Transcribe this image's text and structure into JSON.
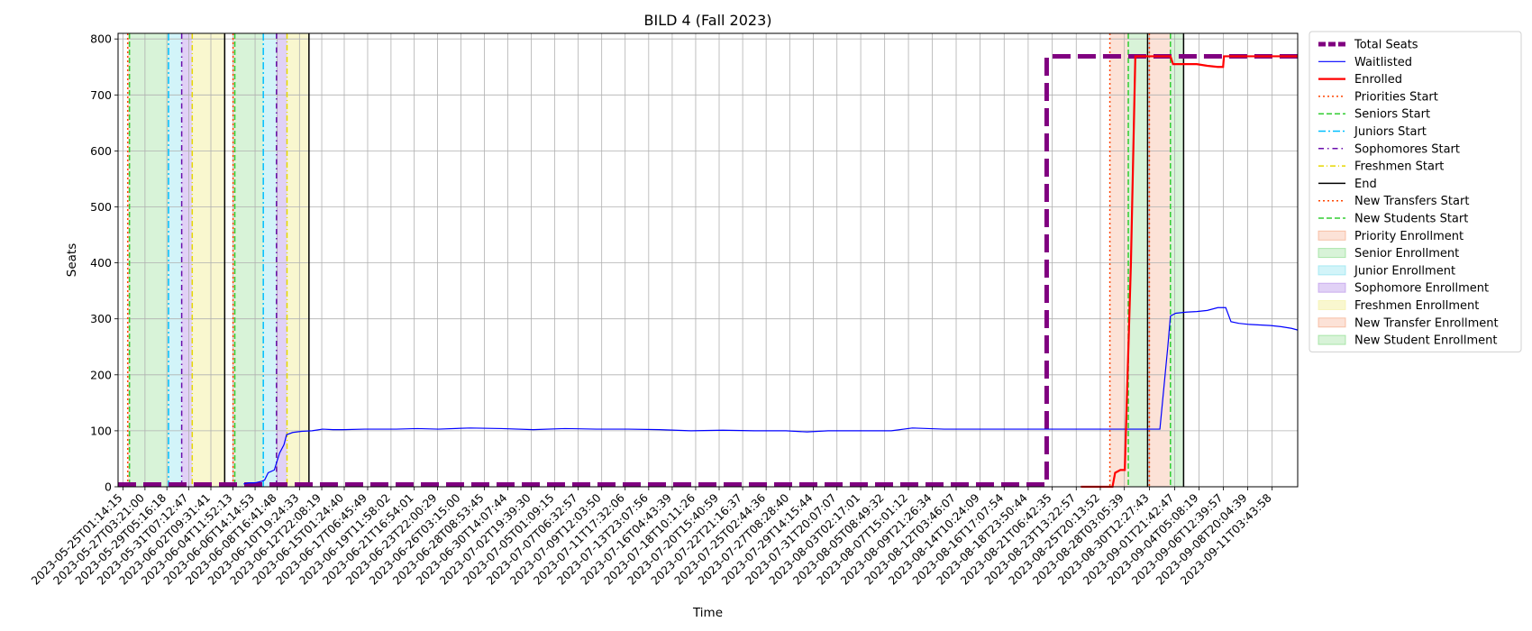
{
  "chart_data": {
    "type": "line",
    "title": "BILD 4 (Fall 2023)",
    "xlabel": "Time",
    "ylabel": "Seats",
    "ylim": [
      0,
      810
    ],
    "yticks": [
      0,
      100,
      200,
      300,
      400,
      500,
      600,
      700,
      800
    ],
    "xlim": [
      "2023-05-24T14:00:00",
      "2023-09-13T14:00:00"
    ],
    "xtick_labels": [
      "2023-05-25T01:14:15",
      "2023-05-27T03:21:00",
      "2023-05-29T05:16:18",
      "2023-05-31T07:12:47",
      "2023-06-02T09:31:41",
      "2023-06-04T11:52:13",
      "2023-06-06T14:14:53",
      "2023-06-08T16:41:48",
      "2023-06-10T19:24:33",
      "2023-06-12T22:08:19",
      "2023-06-15T01:24:40",
      "2023-06-17T06:45:49",
      "2023-06-19T11:58:02",
      "2023-06-21T16:54:01",
      "2023-06-23T22:00:29",
      "2023-06-26T03:15:00",
      "2023-06-28T08:53:45",
      "2023-06-30T14:07:44",
      "2023-07-02T19:39:30",
      "2023-07-05T01:09:15",
      "2023-07-07T06:32:57",
      "2023-07-09T12:03:50",
      "2023-07-11T17:32:06",
      "2023-07-13T23:07:56",
      "2023-07-16T04:43:39",
      "2023-07-18T10:11:26",
      "2023-07-20T15:40:59",
      "2023-07-22T21:16:37",
      "2023-07-25T02:44:36",
      "2023-07-27T08:28:40",
      "2023-07-29T14:15:44",
      "2023-07-31T20:07:07",
      "2023-08-03T02:17:01",
      "2023-08-05T08:49:32",
      "2023-08-07T15:01:12",
      "2023-08-09T21:26:34",
      "2023-08-12T03:46:07",
      "2023-08-14T10:24:09",
      "2023-08-16T17:07:54",
      "2023-08-18T23:50:44",
      "2023-08-21T06:42:35",
      "2023-08-23T13:22:57",
      "2023-08-25T20:13:52",
      "2023-08-28T03:05:39",
      "2023-08-30T12:27:43",
      "2023-09-01T21:42:47",
      "2023-09-04T05:08:19",
      "2023-09-06T12:39:57",
      "2023-09-08T20:04:39",
      "2023-09-11T03:43:58"
    ],
    "series": [
      {
        "name": "Total Seats",
        "color": "#800080",
        "style": "dashed-thick",
        "points": [
          [
            "2023-05-24T14:00:00",
            4
          ],
          [
            "2023-08-20T18:00:00",
            4
          ],
          [
            "2023-08-20T18:00:00",
            769
          ],
          [
            "2023-09-13T14:00:00",
            769
          ]
        ]
      },
      {
        "name": "Waitlisted",
        "color": "#0000ff",
        "style": "solid-thin",
        "points": [
          [
            "2023-06-05T12:00:00",
            5
          ],
          [
            "2023-06-06T00:00:00",
            7
          ],
          [
            "2023-06-06T14:00:00",
            7
          ],
          [
            "2023-06-07T06:00:00",
            10
          ],
          [
            "2023-06-07T12:00:00",
            12
          ],
          [
            "2023-06-07T20:00:00",
            25
          ],
          [
            "2023-06-08T10:00:00",
            30
          ],
          [
            "2023-06-08T22:00:00",
            60
          ],
          [
            "2023-06-09T08:00:00",
            75
          ],
          [
            "2023-06-09T14:00:00",
            93
          ],
          [
            "2023-06-10T04:00:00",
            97
          ],
          [
            "2023-06-11T00:00:00",
            99
          ],
          [
            "2023-06-12T00:00:00",
            100
          ],
          [
            "2023-06-13T00:00:00",
            103
          ],
          [
            "2023-06-14T00:00:00",
            102
          ],
          [
            "2023-06-15T00:00:00",
            102
          ],
          [
            "2023-06-17T00:00:00",
            103
          ],
          [
            "2023-06-20T00:00:00",
            103
          ],
          [
            "2023-06-22T00:00:00",
            104
          ],
          [
            "2023-06-24T00:00:00",
            103
          ],
          [
            "2023-06-27T00:00:00",
            105
          ],
          [
            "2023-06-30T00:00:00",
            104
          ],
          [
            "2023-07-03T00:00:00",
            102
          ],
          [
            "2023-07-06T00:00:00",
            104
          ],
          [
            "2023-07-09T00:00:00",
            103
          ],
          [
            "2023-07-12T00:00:00",
            103
          ],
          [
            "2023-07-15T00:00:00",
            102
          ],
          [
            "2023-07-18T00:00:00",
            100
          ],
          [
            "2023-07-21T00:00:00",
            101
          ],
          [
            "2023-07-24T00:00:00",
            100
          ],
          [
            "2023-07-27T00:00:00",
            100
          ],
          [
            "2023-07-29T00:00:00",
            98
          ],
          [
            "2023-07-31T00:00:00",
            100
          ],
          [
            "2023-08-03T00:00:00",
            100
          ],
          [
            "2023-08-06T00:00:00",
            100
          ],
          [
            "2023-08-08T00:00:00",
            105
          ],
          [
            "2023-08-11T00:00:00",
            103
          ],
          [
            "2023-08-15T00:00:00",
            103
          ],
          [
            "2023-08-20T00:00:00",
            103
          ],
          [
            "2023-08-26T00:00:00",
            103
          ],
          [
            "2023-08-31T12:00:00",
            103
          ],
          [
            "2023-09-01T06:00:00",
            250
          ],
          [
            "2023-09-01T12:00:00",
            305
          ],
          [
            "2023-09-02T00:00:00",
            310
          ],
          [
            "2023-09-03T00:00:00",
            312
          ],
          [
            "2023-09-04T00:00:00",
            313
          ],
          [
            "2023-09-05T00:00:00",
            315
          ],
          [
            "2023-09-06T00:00:00",
            320
          ],
          [
            "2023-09-06T18:00:00",
            320
          ],
          [
            "2023-09-07T06:00:00",
            295
          ],
          [
            "2023-09-08T00:00:00",
            292
          ],
          [
            "2023-09-09T00:00:00",
            290
          ],
          [
            "2023-09-10T00:00:00",
            289
          ],
          [
            "2023-09-11T00:00:00",
            288
          ],
          [
            "2023-09-12T00:00:00",
            286
          ],
          [
            "2023-09-13T00:00:00",
            283
          ],
          [
            "2023-09-13T14:00:00",
            280
          ]
        ]
      },
      {
        "name": "Enrolled",
        "color": "#ff0000",
        "style": "solid-thick",
        "points": [
          [
            "2023-08-24T00:00:00",
            0
          ],
          [
            "2023-08-27T00:00:00",
            0
          ],
          [
            "2023-08-27T06:00:00",
            25
          ],
          [
            "2023-08-27T18:00:00",
            30
          ],
          [
            "2023-08-28T04:00:00",
            30
          ],
          [
            "2023-08-28T18:00:00",
            400
          ],
          [
            "2023-08-29T04:00:00",
            769
          ],
          [
            "2023-09-01T12:00:00",
            769
          ],
          [
            "2023-09-01T18:00:00",
            755
          ],
          [
            "2023-09-04T00:00:00",
            755
          ],
          [
            "2023-09-05T00:00:00",
            752
          ],
          [
            "2023-09-06T00:00:00",
            750
          ],
          [
            "2023-09-06T12:00:00",
            750
          ],
          [
            "2023-09-06T14:00:00",
            769
          ],
          [
            "2023-09-13T14:00:00",
            769
          ]
        ]
      }
    ],
    "vertical_lines": [
      {
        "name": "Priorities Start",
        "color": "#ff4500",
        "dash": "2,3",
        "x": [
          "2023-05-25T12:00:00",
          "2023-06-04T12:00:00",
          "2023-08-26T18:00:00"
        ]
      },
      {
        "name": "Seniors Start",
        "color": "#32cd32",
        "dash": "6,3",
        "x": [
          "2023-05-25T16:00:00",
          "2023-06-04T16:00:00"
        ]
      },
      {
        "name": "Juniors Start",
        "color": "#00bfff",
        "dash": "8,3,2,3",
        "x": [
          "2023-05-29T09:00:00",
          "2023-06-07T09:00:00"
        ]
      },
      {
        "name": "Sophomores Start",
        "color": "#6a0dad",
        "dash": "6,4,1.5,4",
        "x": [
          "2023-05-30T15:00:00",
          "2023-06-08T15:00:00"
        ]
      },
      {
        "name": "Freshmen Start",
        "color": "#e6d800",
        "dash": "6,3,1,3",
        "x": [
          "2023-05-31T15:00:00",
          "2023-06-09T15:00:00"
        ]
      },
      {
        "name": "End",
        "color": "#000000",
        "dash": "",
        "x": [
          "2023-06-03T17:00:00",
          "2023-06-11T17:00:00",
          "2023-08-30T08:00:00",
          "2023-09-02T18:00:00"
        ]
      },
      {
        "name": "New Transfers Start",
        "color": "#ff4500",
        "dash": "2,3",
        "x": [
          "2023-08-30T12:00:00"
        ]
      },
      {
        "name": "New Students Start",
        "color": "#32cd32",
        "dash": "6,3",
        "x": [
          "2023-08-28T12:00:00",
          "2023-09-01T12:00:00"
        ]
      }
    ],
    "spans": [
      {
        "name": "Priority Enrollment",
        "color": "#f4a07a",
        "opacity": 0.3,
        "ranges": [
          [
            "2023-05-25T12:00:00",
            "2023-05-25T16:00:00"
          ],
          [
            "2023-06-04T12:00:00",
            "2023-06-04T16:00:00"
          ],
          [
            "2023-08-26T18:00:00",
            "2023-08-28T12:00:00"
          ]
        ]
      },
      {
        "name": "Senior Enrollment",
        "color": "#7ed87e",
        "opacity": 0.3,
        "ranges": [
          [
            "2023-05-25T16:00:00",
            "2023-05-29T09:00:00"
          ],
          [
            "2023-06-04T16:00:00",
            "2023-06-07T09:00:00"
          ],
          [
            "2023-08-28T12:00:00",
            "2023-08-30T08:00:00"
          ]
        ]
      },
      {
        "name": "Junior Enrollment",
        "color": "#7fe0ee",
        "opacity": 0.35,
        "ranges": [
          [
            "2023-05-29T09:00:00",
            "2023-05-30T15:00:00"
          ],
          [
            "2023-06-07T09:00:00",
            "2023-06-08T15:00:00"
          ]
        ]
      },
      {
        "name": "Sophomore Enrollment",
        "color": "#b48be8",
        "opacity": 0.4,
        "ranges": [
          [
            "2023-05-30T15:00:00",
            "2023-05-31T15:00:00"
          ],
          [
            "2023-06-08T15:00:00",
            "2023-06-09T15:00:00"
          ]
        ]
      },
      {
        "name": "Freshmen Enrollment",
        "color": "#f3f0a0",
        "opacity": 0.5,
        "ranges": [
          [
            "2023-05-31T15:00:00",
            "2023-06-03T17:00:00"
          ],
          [
            "2023-06-09T15:00:00",
            "2023-06-11T17:00:00"
          ]
        ]
      },
      {
        "name": "New Transfer Enrollment",
        "color": "#f4a07a",
        "opacity": 0.3,
        "ranges": [
          [
            "2023-08-30T12:00:00",
            "2023-09-01T12:00:00"
          ]
        ]
      },
      {
        "name": "New Student Enrollment",
        "color": "#7ed87e",
        "opacity": 0.3,
        "ranges": [
          [
            "2023-09-01T12:00:00",
            "2023-09-02T18:00:00"
          ]
        ]
      }
    ],
    "grid": true,
    "legend_position": "outside-right-top"
  }
}
